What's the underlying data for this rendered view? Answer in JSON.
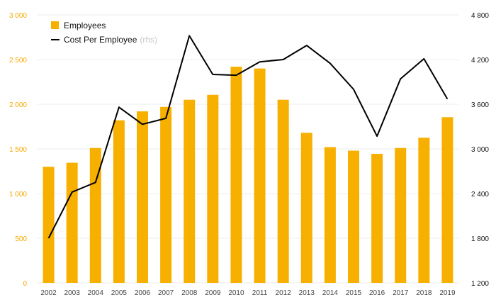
{
  "chart_data": {
    "type": "bar+line",
    "categories": [
      "2002",
      "2003",
      "2004",
      "2005",
      "2006",
      "2007",
      "2008",
      "2009",
      "2010",
      "2011",
      "2012",
      "2013",
      "2014",
      "2015",
      "2016",
      "2017",
      "2018",
      "2019"
    ],
    "series": [
      {
        "name": "Employees",
        "type": "bar",
        "axis": "left",
        "color": "#f8b000",
        "values": [
          1300,
          1345,
          1510,
          1820,
          1920,
          1970,
          2050,
          2105,
          2420,
          2400,
          2050,
          1680,
          1520,
          1480,
          1445,
          1510,
          1625,
          1855
        ]
      },
      {
        "name": "Cost Per Employee",
        "name_suffix": "(rhs)",
        "type": "line",
        "axis": "right",
        "color": "#000000",
        "values": [
          1800,
          2420,
          2550,
          3560,
          3330,
          3410,
          4520,
          4000,
          3990,
          4170,
          4200,
          4390,
          4150,
          3800,
          3170,
          3940,
          4210,
          3670
        ]
      }
    ],
    "y_left": {
      "ylim": [
        0,
        3000
      ],
      "ticks": [
        0,
        500,
        1000,
        1500,
        2000,
        2500,
        3000
      ],
      "tick_labels": [
        "0",
        "500",
        "1 000",
        "1 500",
        "2 000",
        "2 500",
        "3 000"
      ],
      "color": "#f5a800"
    },
    "y_right": {
      "ylim": [
        1200,
        4800
      ],
      "ticks": [
        1200,
        1800,
        2400,
        3000,
        3600,
        4200,
        4800
      ],
      "tick_labels": [
        "1 200",
        "1 800",
        "2 400",
        "3 000",
        "3 600",
        "4 200",
        "4 800"
      ],
      "color": "#111111"
    },
    "grid": true,
    "legend": "top-left"
  }
}
